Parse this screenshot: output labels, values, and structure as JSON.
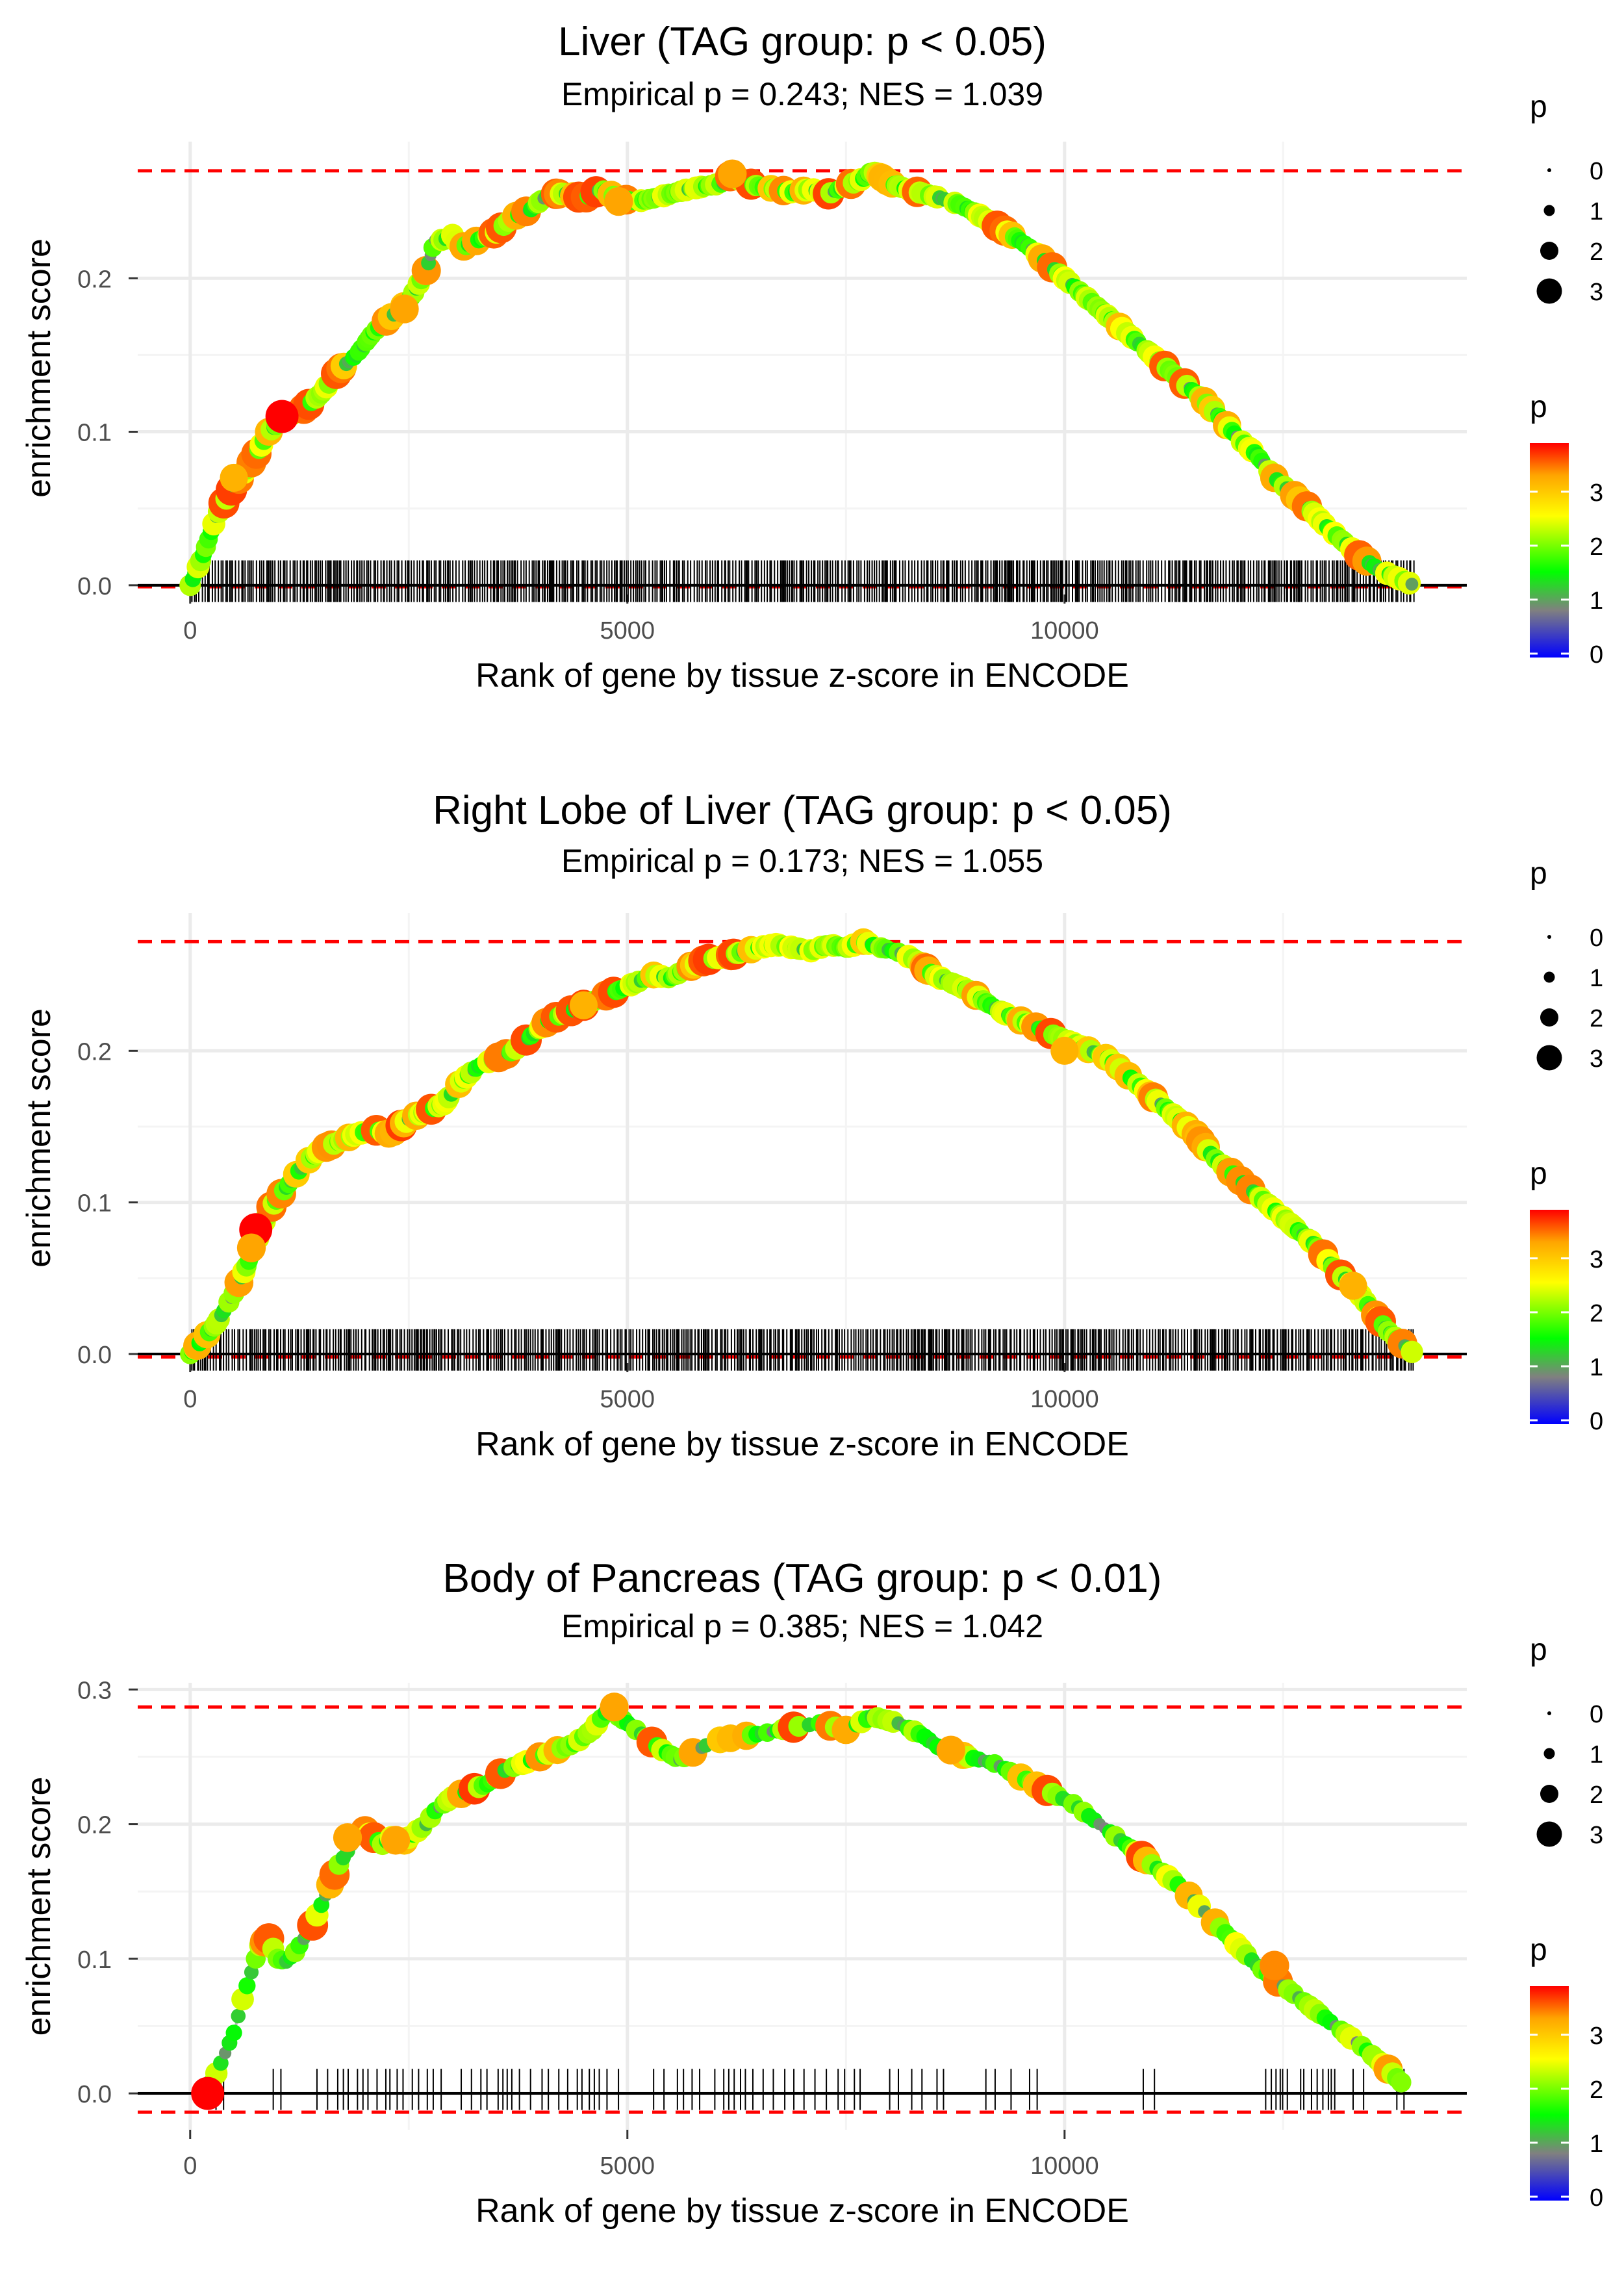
{
  "chart_data": [
    {
      "type": "line",
      "title": "Liver (TAG group: p < 0.05)",
      "subtitle": "Empirical p = 0.243; NES = 1.039",
      "xlabel": "Rank of gene by tissue z-score in ENCODE",
      "ylabel": "enrichment score",
      "xlim": [
        -600,
        14600
      ],
      "ylim": [
        -0.006,
        0.289
      ],
      "x_ticks": [
        0,
        5000,
        10000
      ],
      "x_tick_labels": [
        "0",
        "5000",
        "10000"
      ],
      "y_ticks": [
        0.0,
        0.1,
        0.2
      ],
      "y_tick_labels": [
        "0.0",
        "0.1",
        "0.2"
      ],
      "max_es": 0.27,
      "min_es": -0.001,
      "rug_density": "dense",
      "series": [
        {
          "name": "running enrichment score",
          "x": [
            0,
            150,
            300,
            500,
            700,
            900,
            1100,
            1300,
            1500,
            1700,
            1900,
            2100,
            2300,
            2500,
            2700,
            2800,
            2900,
            3000,
            3100,
            3300,
            3500,
            3700,
            3900,
            4100,
            4300,
            4500,
            4700,
            4900,
            5100,
            5300,
            5500,
            5700,
            5900,
            6100,
            6200,
            6300,
            6500,
            6700,
            6900,
            7100,
            7300,
            7500,
            7700,
            7800,
            8000,
            8200,
            8400,
            8600,
            8800,
            9000,
            9200,
            9400,
            9600,
            9800,
            10000,
            10200,
            10400,
            10600,
            10800,
            11000,
            11200,
            11400,
            11600,
            11800,
            12000,
            12200,
            12400,
            12600,
            12800,
            13000,
            13200,
            13400,
            13600,
            13800,
            14000
          ],
          "y": [
            0,
            0.02,
            0.045,
            0.065,
            0.08,
            0.1,
            0.11,
            0.115,
            0.125,
            0.14,
            0.15,
            0.165,
            0.175,
            0.185,
            0.205,
            0.225,
            0.225,
            0.228,
            0.22,
            0.225,
            0.23,
            0.24,
            0.245,
            0.255,
            0.255,
            0.252,
            0.258,
            0.252,
            0.25,
            0.252,
            0.255,
            0.258,
            0.26,
            0.262,
            0.268,
            0.263,
            0.26,
            0.258,
            0.256,
            0.258,
            0.255,
            0.26,
            0.265,
            0.27,
            0.262,
            0.258,
            0.255,
            0.252,
            0.248,
            0.242,
            0.235,
            0.228,
            0.22,
            0.21,
            0.2,
            0.19,
            0.18,
            0.17,
            0.16,
            0.15,
            0.14,
            0.13,
            0.12,
            0.108,
            0.095,
            0.085,
            0.07,
            0.06,
            0.05,
            0.038,
            0.028,
            0.018,
            0.01,
            0.005,
            0
          ]
        }
      ],
      "legend": [
        {
          "title": "p",
          "kind": "size",
          "levels": [
            "0",
            "1",
            "2",
            "3"
          ]
        },
        {
          "title": "p",
          "kind": "color",
          "levels": [
            "0",
            "1",
            "2",
            "3"
          ],
          "colors": [
            "#0000ff",
            "#808080",
            "#00ff00",
            "#ffff00",
            "#ff0000"
          ]
        }
      ]
    },
    {
      "type": "line",
      "title": "Right Lobe of Liver (TAG group: p < 0.05)",
      "subtitle": "Empirical p = 0.173; NES = 1.055",
      "xlabel": "Rank of gene by tissue z-score in ENCODE",
      "ylabel": "enrichment score",
      "xlim": [
        -600,
        14600
      ],
      "ylim": [
        -0.006,
        0.291
      ],
      "x_ticks": [
        0,
        5000,
        10000
      ],
      "x_tick_labels": [
        "0",
        "5000",
        "10000"
      ],
      "y_ticks": [
        0.0,
        0.1,
        0.2
      ],
      "y_tick_labels": [
        "0.0",
        "0.1",
        "0.2"
      ],
      "max_es": 0.272,
      "min_es": -0.002,
      "rug_density": "dense",
      "series": [
        {
          "name": "running enrichment score",
          "x": [
            0,
            300,
            500,
            700,
            800,
            900,
            1100,
            1300,
            1500,
            1700,
            1900,
            2100,
            2300,
            2500,
            2700,
            2900,
            3100,
            3300,
            3500,
            3700,
            3900,
            4100,
            4300,
            4500,
            4700,
            4900,
            5100,
            5300,
            5500,
            5700,
            5900,
            6100,
            6300,
            6500,
            6700,
            6900,
            7100,
            7300,
            7500,
            7700,
            7900,
            8100,
            8300,
            8500,
            8700,
            8900,
            9100,
            9300,
            9500,
            9700,
            9900,
            10100,
            10300,
            10500,
            10700,
            10900,
            11100,
            11300,
            11500,
            11700,
            11900,
            12100,
            12300,
            12500,
            12700,
            12900,
            13100,
            13300,
            13500,
            13700,
            14000
          ],
          "y": [
            0,
            0.02,
            0.04,
            0.065,
            0.08,
            0.095,
            0.11,
            0.125,
            0.135,
            0.14,
            0.145,
            0.148,
            0.145,
            0.155,
            0.16,
            0.165,
            0.18,
            0.19,
            0.195,
            0.2,
            0.21,
            0.22,
            0.225,
            0.23,
            0.235,
            0.24,
            0.245,
            0.25,
            0.248,
            0.255,
            0.26,
            0.262,
            0.265,
            0.268,
            0.27,
            0.268,
            0.266,
            0.27,
            0.268,
            0.272,
            0.268,
            0.265,
            0.26,
            0.25,
            0.245,
            0.24,
            0.232,
            0.225,
            0.22,
            0.215,
            0.21,
            0.205,
            0.2,
            0.195,
            0.185,
            0.175,
            0.165,
            0.155,
            0.145,
            0.13,
            0.12,
            0.11,
            0.1,
            0.09,
            0.08,
            0.07,
            0.055,
            0.045,
            0.03,
            0.015,
            0
          ]
        }
      ],
      "legend": [
        {
          "title": "p",
          "kind": "size",
          "levels": [
            "0",
            "1",
            "2",
            "3"
          ]
        },
        {
          "title": "p",
          "kind": "color",
          "levels": [
            "0",
            "1",
            "2",
            "3"
          ],
          "colors": [
            "#0000ff",
            "#808080",
            "#00ff00",
            "#ffff00",
            "#ff0000"
          ]
        }
      ]
    },
    {
      "type": "line",
      "title": "Body of Pancreas (TAG group: p < 0.01)",
      "subtitle": "Empirical p = 0.385; NES = 1.042",
      "xlabel": "Rank of gene by tissue z-score in ENCODE",
      "ylabel": "enrichment score",
      "xlim": [
        -600,
        14600
      ],
      "ylim": [
        -0.027,
        0.305
      ],
      "x_ticks": [
        0,
        5000,
        10000
      ],
      "x_tick_labels": [
        "0",
        "5000",
        "10000"
      ],
      "y_ticks": [
        0.0,
        0.1,
        0.2,
        0.3
      ],
      "y_tick_labels": [
        "0.0",
        "0.1",
        "0.2",
        "0.3"
      ],
      "max_es": 0.287,
      "min_es": -0.014,
      "rug_density": "sparse",
      "series": [
        {
          "name": "running enrichment score",
          "x": [
            200,
            300,
            400,
            500,
            600,
            700,
            800,
            900,
            1000,
            1100,
            1200,
            1300,
            1400,
            1500,
            1600,
            1700,
            1800,
            1900,
            2000,
            2100,
            2200,
            2300,
            2400,
            2500,
            2600,
            2700,
            2800,
            2900,
            3000,
            3200,
            3400,
            3600,
            3800,
            4000,
            4200,
            4400,
            4600,
            4800,
            4900,
            5100,
            5400,
            5600,
            5800,
            6000,
            6300,
            6600,
            6900,
            7200,
            7500,
            7800,
            8100,
            8400,
            8600,
            8900,
            9200,
            9500,
            9800,
            10100,
            10400,
            10700,
            11000,
            11300,
            11600,
            11900,
            12200,
            12500,
            12800,
            13100,
            13400,
            13700,
            13900
          ],
          "y": [
            0,
            0.015,
            0.03,
            0.045,
            0.07,
            0.09,
            0.11,
            0.115,
            0.1,
            0.098,
            0.105,
            0.115,
            0.125,
            0.14,
            0.155,
            0.17,
            0.18,
            0.19,
            0.195,
            0.19,
            0.185,
            0.19,
            0.185,
            0.19,
            0.195,
            0.2,
            0.21,
            0.215,
            0.22,
            0.225,
            0.23,
            0.24,
            0.245,
            0.25,
            0.255,
            0.26,
            0.27,
            0.287,
            0.28,
            0.27,
            0.255,
            0.248,
            0.255,
            0.262,
            0.265,
            0.268,
            0.272,
            0.275,
            0.27,
            0.28,
            0.275,
            0.265,
            0.255,
            0.25,
            0.245,
            0.235,
            0.225,
            0.215,
            0.2,
            0.185,
            0.17,
            0.155,
            0.135,
            0.115,
            0.095,
            0.08,
            0.065,
            0.05,
            0.035,
            0.018,
            0.005
          ]
        }
      ],
      "legend": [
        {
          "title": "p",
          "kind": "size",
          "levels": [
            "0",
            "1",
            "2",
            "3"
          ]
        },
        {
          "title": "p",
          "kind": "color",
          "levels": [
            "0",
            "1",
            "2",
            "3"
          ],
          "colors": [
            "#0000ff",
            "#808080",
            "#00ff00",
            "#ffff00",
            "#ff0000"
          ]
        }
      ]
    }
  ]
}
